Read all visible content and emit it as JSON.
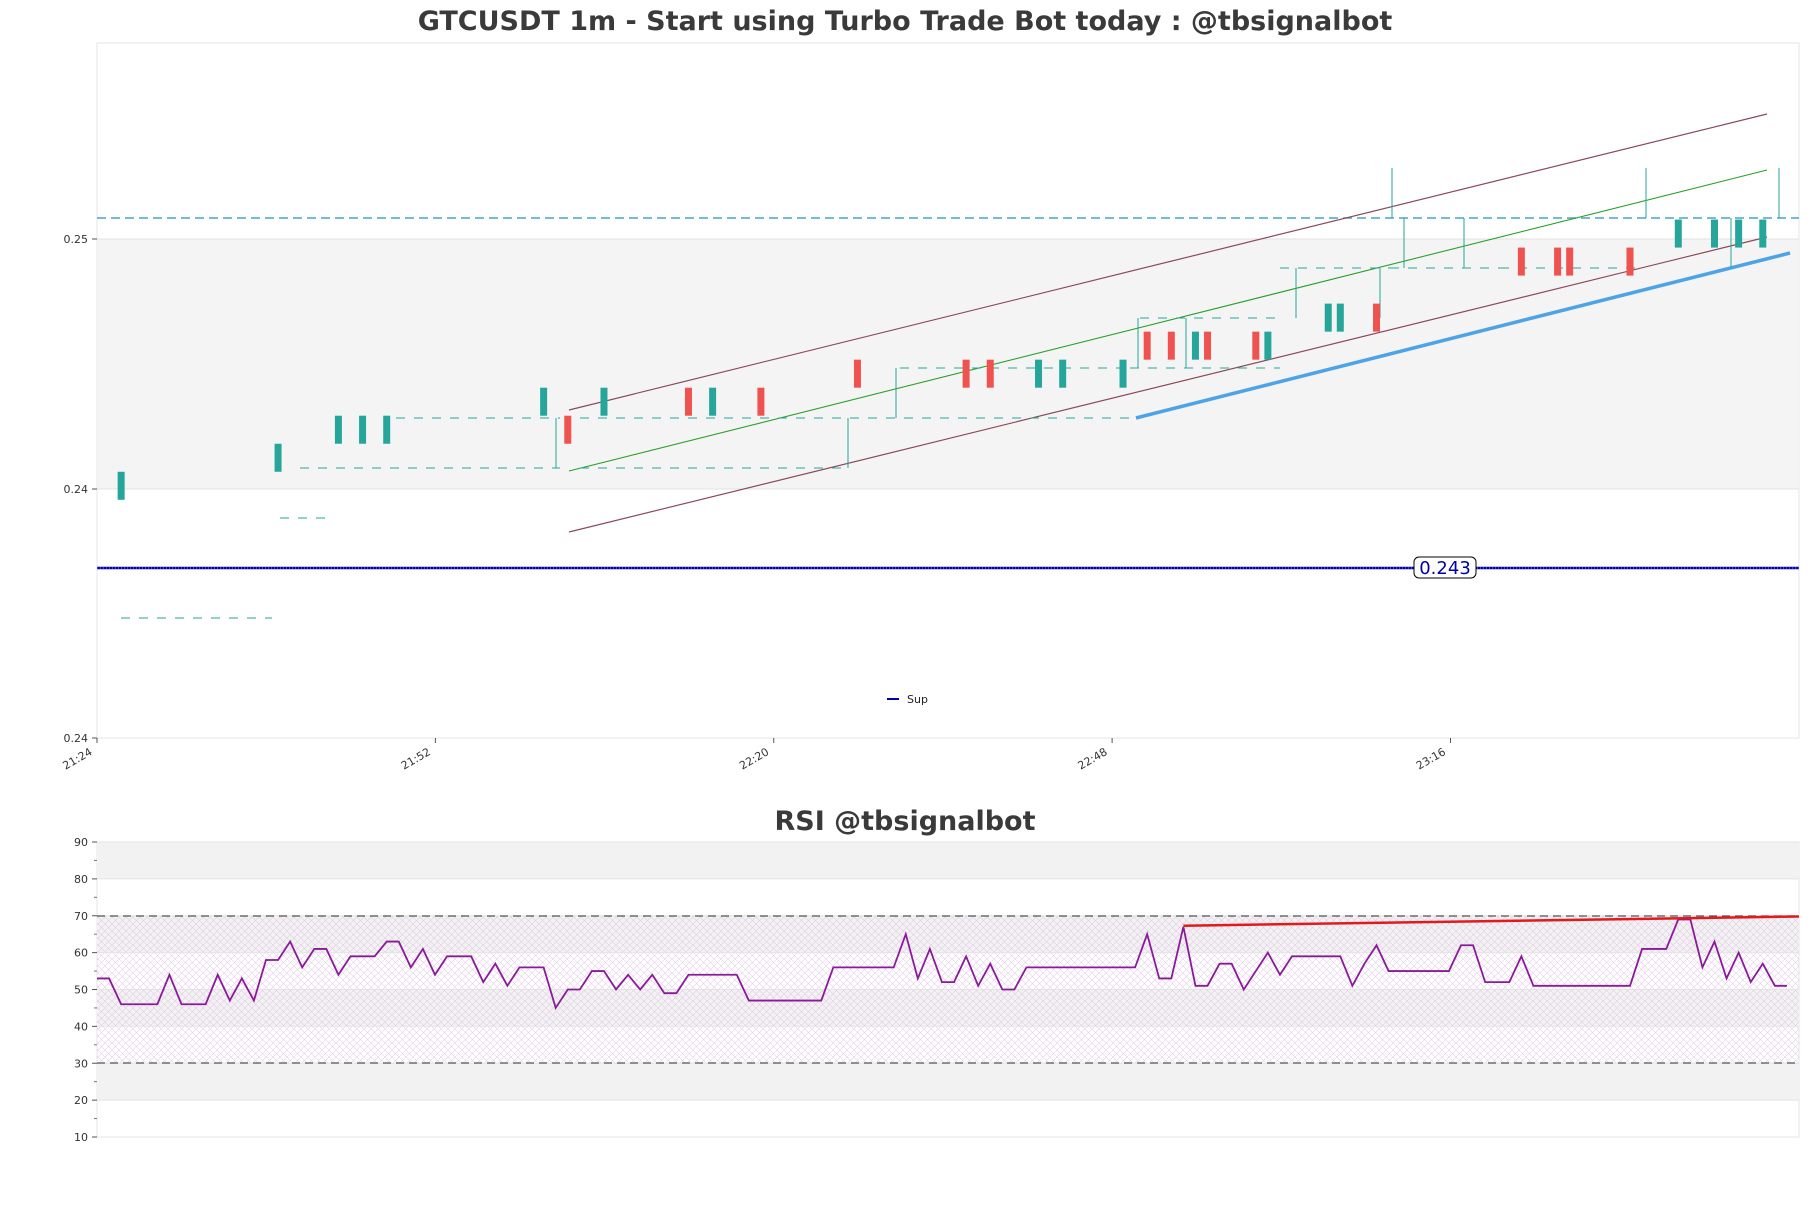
{
  "chart_data": [
    {
      "type": "candlestick",
      "title": "GTCUSDT 1m - Start using Turbo Trade Bot today : @tbsignalbot",
      "y_tick_labels": [
        "0.25",
        "0.24",
        "0.24"
      ],
      "x_tick_labels": [
        "21:24",
        "21:52",
        "22:20",
        "22:48",
        "23:16"
      ],
      "ylim": [
        0.2335,
        0.2583
      ],
      "x_range": [
        0,
        141
      ],
      "support_level": 0.243,
      "support_label": "0.243",
      "legend": [
        {
          "name": "Sup",
          "color": "#0000aa"
        }
      ],
      "legend_position": "bottom-center",
      "grid": true,
      "colors": {
        "up": "#26a69a",
        "down": "#ef5350",
        "support": "#0000aa",
        "trend_channel": "#8b4a5a",
        "trend_mid": "#2ca02c",
        "trend_support": "#4da3e6",
        "resistance": "#4aa3c8"
      },
      "candles": [
        {
          "x": 2,
          "open": 0.242,
          "close": 0.243
        },
        {
          "x": 15,
          "open": 0.243,
          "close": 0.244
        },
        {
          "x": 20,
          "open": 0.244,
          "close": 0.245
        },
        {
          "x": 22,
          "open": 0.244,
          "close": 0.245
        },
        {
          "x": 24,
          "open": 0.244,
          "close": 0.245
        },
        {
          "x": 37,
          "open": 0.245,
          "close": 0.246
        },
        {
          "x": 39,
          "open": 0.245,
          "close": 0.244
        },
        {
          "x": 42,
          "open": 0.245,
          "close": 0.246
        },
        {
          "x": 49,
          "open": 0.246,
          "close": 0.245
        },
        {
          "x": 51,
          "open": 0.245,
          "close": 0.246
        },
        {
          "x": 55,
          "open": 0.246,
          "close": 0.245
        },
        {
          "x": 63,
          "open": 0.247,
          "close": 0.246
        },
        {
          "x": 72,
          "open": 0.247,
          "close": 0.246
        },
        {
          "x": 74,
          "open": 0.247,
          "close": 0.246
        },
        {
          "x": 78,
          "open": 0.246,
          "close": 0.247
        },
        {
          "x": 80,
          "open": 0.246,
          "close": 0.247
        },
        {
          "x": 85,
          "open": 0.246,
          "close": 0.247
        },
        {
          "x": 87,
          "open": 0.248,
          "close": 0.247
        },
        {
          "x": 89,
          "open": 0.248,
          "close": 0.247
        },
        {
          "x": 91,
          "open": 0.247,
          "close": 0.248
        },
        {
          "x": 92,
          "open": 0.248,
          "close": 0.247
        },
        {
          "x": 96,
          "open": 0.248,
          "close": 0.247
        },
        {
          "x": 97,
          "open": 0.247,
          "close": 0.248
        },
        {
          "x": 102,
          "open": 0.248,
          "close": 0.249
        },
        {
          "x": 103,
          "open": 0.248,
          "close": 0.249
        },
        {
          "x": 106,
          "open": 0.249,
          "close": 0.248
        },
        {
          "x": 118,
          "open": 0.251,
          "close": 0.25
        },
        {
          "x": 121,
          "open": 0.251,
          "close": 0.25
        },
        {
          "x": 122,
          "open": 0.251,
          "close": 0.25
        },
        {
          "x": 127,
          "open": 0.251,
          "close": 0.25
        },
        {
          "x": 131,
          "open": 0.251,
          "close": 0.252
        },
        {
          "x": 134,
          "open": 0.251,
          "close": 0.252
        },
        {
          "x": 136,
          "open": 0.251,
          "close": 0.252
        },
        {
          "x": 138,
          "open": 0.251,
          "close": 0.252
        }
      ]
    },
    {
      "type": "line",
      "title": "RSI @tbsignalbot",
      "y_tick_labels": [
        "10",
        "20",
        "30",
        "40",
        "50",
        "60",
        "70",
        "80",
        "90"
      ],
      "ylim": [
        10,
        90
      ],
      "x_range": [
        0,
        141
      ],
      "overbought": 70,
      "oversold": 30,
      "grid": true,
      "colors": {
        "rsi": "#8b1a9b",
        "trend": "#e31a1c",
        "levels": "#555555"
      },
      "series": [
        {
          "values": [
            53,
            53,
            46,
            46,
            46,
            46,
            54,
            46,
            46,
            46,
            54,
            47,
            53,
            47,
            58,
            58,
            63,
            56,
            61,
            61,
            54,
            59,
            59,
            59,
            63,
            63,
            56,
            61,
            54,
            59,
            59,
            59,
            52,
            57,
            51,
            56,
            56,
            56,
            45,
            50,
            50,
            55,
            55,
            50,
            54,
            50,
            54,
            49,
            49,
            54,
            54,
            54,
            54,
            54,
            47,
            47,
            47,
            47,
            47,
            47,
            47,
            56,
            56,
            56,
            56,
            56,
            56,
            65,
            53,
            61,
            52,
            52,
            59,
            51,
            57,
            50,
            50,
            56,
            56,
            56,
            56,
            56,
            56,
            56,
            56,
            56,
            56,
            65,
            53,
            53,
            67,
            51,
            51,
            57,
            57,
            50,
            55,
            60,
            54,
            59,
            59,
            59,
            59,
            59,
            51,
            57,
            62,
            55,
            55,
            55,
            55,
            55,
            55,
            62,
            62,
            52,
            52,
            52,
            59,
            51,
            51,
            51,
            51,
            51,
            51,
            51,
            51,
            51,
            61,
            61,
            61,
            69,
            69,
            56,
            63,
            53,
            60,
            52,
            57,
            51,
            51
          ]
        }
      ],
      "trend_line": {
        "x1": 90,
        "y1": 67.3,
        "x2": 141,
        "y2": 69.8
      }
    }
  ]
}
